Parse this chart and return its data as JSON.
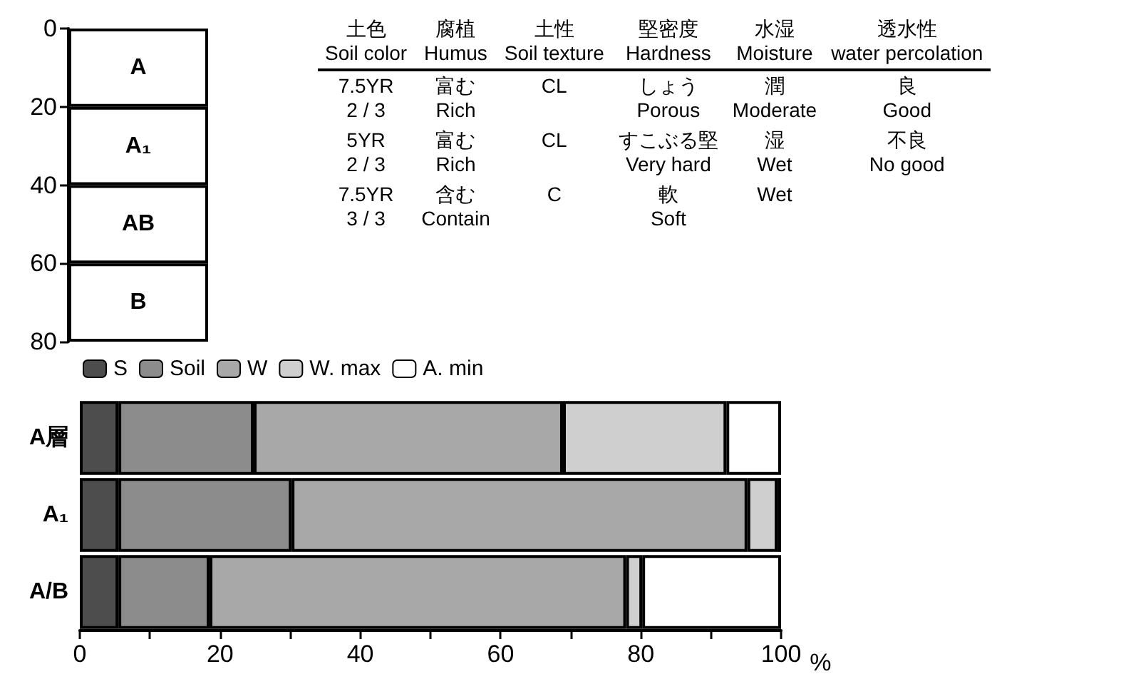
{
  "chart_data": [
    {
      "type": "bar",
      "stacked": true,
      "categories": [
        null
      ],
      "legend": false,
      "ylim": [
        80,
        0
      ],
      "yticks": [
        0,
        20,
        40,
        60,
        80
      ],
      "series": [
        {
          "name": "A",
          "color": "#ffffff",
          "values": [
            20
          ]
        },
        {
          "name": "A₁",
          "color": "#ffffff",
          "values": [
            20
          ]
        },
        {
          "name": "AB",
          "color": "#ffffff",
          "values": [
            20
          ]
        },
        {
          "name": "B",
          "color": "#ffffff",
          "values": [
            20
          ]
        }
      ]
    },
    {
      "type": "other",
      "categories": [
        "土色\nSoil color",
        "腐植\nHumus",
        "土性\nSoil texture",
        "堅密度\nHardness",
        "水湿\nMoisture",
        "透水性\nwater percolation"
      ],
      "cell_labels": [
        [
          "7.5YR\n2 / 3",
          "富む\nRich",
          "CL",
          "しょう\nPorous",
          "潤\nModerate",
          "良\nGood"
        ],
        [
          "5YR\n2 / 3",
          "富む\nRich",
          "CL",
          "すこぶる堅\nVery hard",
          "湿\nWet",
          "不良\nNo good"
        ],
        [
          "7.5YR\n3 / 3",
          "含む\nContain",
          "C",
          "軟\nSoft",
          "Wet",
          null
        ]
      ]
    },
    {
      "type": "bar",
      "stacked": true,
      "orientation": "horizontal",
      "categories": [
        "A層",
        "A₁",
        "A/B"
      ],
      "xlabel": "%",
      "legend": "top",
      "xlim": [
        0,
        100
      ],
      "xticks": [
        0,
        {
          "value": 10,
          "label": null
        },
        20,
        {
          "value": 30,
          "label": null
        },
        40,
        {
          "value": 50,
          "label": null
        },
        60,
        {
          "value": 70,
          "label": null
        },
        80,
        {
          "value": 90,
          "label": null
        },
        100
      ],
      "series": [
        {
          "name": "S",
          "color": "#4d4d4d",
          "values": [
            5.5,
            5.5,
            5.5
          ]
        },
        {
          "name": "Soil",
          "color": "#8c8c8c",
          "values": [
            19.3,
            24.7,
            13
          ]
        },
        {
          "name": "W",
          "color": "#a8a8a8",
          "values": [
            44.1,
            65,
            59.4
          ]
        },
        {
          "name": "W. max",
          "color": "#cfcfcf",
          "values": [
            23.3,
            4.3,
            2.3
          ]
        },
        {
          "name": "A. min",
          "color": "#ffffff",
          "values": [
            7.8,
            0.5,
            19.8
          ]
        }
      ]
    }
  ]
}
